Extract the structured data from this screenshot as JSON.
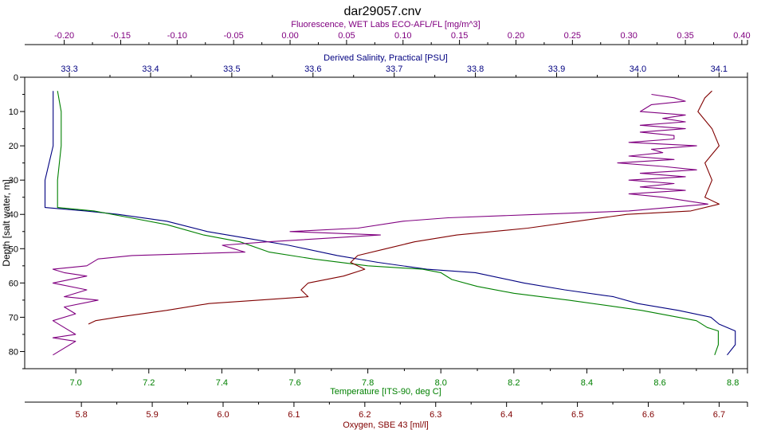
{
  "chart_data": {
    "type": "line",
    "title": "dar29057.cnv",
    "grid": false,
    "legend": "none",
    "y_axis": {
      "label": "Depth [salt water, m]",
      "range": [
        0,
        85
      ],
      "inverted": true,
      "ticks": [
        0,
        10,
        20,
        30,
        40,
        50,
        60,
        70,
        80
      ]
    },
    "x_axes": [
      {
        "id": "fluorescence",
        "position": "top-outer",
        "label": "Fluorescence, WET Labs ECO-AFL/FL [mg/m^3]",
        "color": "#800080",
        "range": [
          -0.235,
          0.405
        ],
        "ticks": [
          -0.2,
          -0.15,
          -0.1,
          -0.05,
          0.0,
          0.05,
          0.1,
          0.15,
          0.2,
          0.25,
          0.3,
          0.35,
          0.4
        ],
        "tick_labels": [
          "-0.20",
          "-0.15",
          "-0.10",
          "-0.05",
          "0.00",
          "0.05",
          "0.10",
          "0.15",
          "0.20",
          "0.25",
          "0.30",
          "0.35",
          "0.40"
        ]
      },
      {
        "id": "salinity",
        "position": "top-inner",
        "label": "Derived Salinity, Practical [PSU]",
        "color": "#000080",
        "range": [
          33.245,
          34.135
        ],
        "ticks": [
          33.3,
          33.4,
          33.5,
          33.6,
          33.7,
          33.8,
          33.9,
          34.0,
          34.1
        ],
        "tick_labels": [
          "33.3",
          "33.4",
          "33.5",
          "33.6",
          "33.7",
          "33.8",
          "33.9",
          "34.0",
          "34.1"
        ]
      },
      {
        "id": "temperature",
        "position": "bottom-inner",
        "label": "Temperature [ITS-90, deg C]",
        "color": "#008000",
        "range": [
          6.86,
          8.84
        ],
        "ticks": [
          7.0,
          7.2,
          7.4,
          7.6,
          7.8,
          8.0,
          8.2,
          8.4,
          8.6,
          8.8
        ],
        "tick_labels": [
          "7.0",
          "7.2",
          "7.4",
          "7.6",
          "7.8",
          "8.0",
          "8.2",
          "8.4",
          "8.6",
          "8.8"
        ]
      },
      {
        "id": "oxygen",
        "position": "bottom-outer",
        "label": "Oxygen, SBE 43 [ml/l]",
        "color": "#800000",
        "range": [
          5.72,
          6.74
        ],
        "ticks": [
          5.8,
          5.9,
          6.0,
          6.1,
          6.2,
          6.3,
          6.4,
          6.5,
          6.6,
          6.7
        ],
        "tick_labels": [
          "5.8",
          "5.9",
          "6.0",
          "6.1",
          "6.2",
          "6.3",
          "6.4",
          "6.5",
          "6.6",
          "6.7"
        ]
      }
    ],
    "series": [
      {
        "axis": "salinity",
        "color": "#000080",
        "points": [
          [
            33.28,
            4
          ],
          [
            33.28,
            10
          ],
          [
            33.28,
            20
          ],
          [
            33.27,
            30
          ],
          [
            33.27,
            38
          ],
          [
            33.32,
            39
          ],
          [
            33.36,
            40
          ],
          [
            33.42,
            42
          ],
          [
            33.47,
            45
          ],
          [
            33.52,
            47
          ],
          [
            33.57,
            49
          ],
          [
            33.63,
            52
          ],
          [
            33.68,
            54
          ],
          [
            33.74,
            56
          ],
          [
            33.8,
            57
          ],
          [
            33.86,
            60
          ],
          [
            33.91,
            62
          ],
          [
            33.97,
            64
          ],
          [
            34.0,
            66
          ],
          [
            34.05,
            68
          ],
          [
            34.09,
            70
          ],
          [
            34.1,
            72
          ],
          [
            34.12,
            74
          ],
          [
            34.12,
            78
          ],
          [
            34.11,
            81
          ]
        ]
      },
      {
        "axis": "temperature",
        "color": "#008000",
        "points": [
          [
            6.95,
            4
          ],
          [
            6.96,
            10
          ],
          [
            6.96,
            20
          ],
          [
            6.95,
            30
          ],
          [
            6.95,
            38
          ],
          [
            7.05,
            39
          ],
          [
            7.15,
            41
          ],
          [
            7.25,
            43
          ],
          [
            7.35,
            46
          ],
          [
            7.45,
            48
          ],
          [
            7.53,
            51
          ],
          [
            7.65,
            53
          ],
          [
            7.8,
            55
          ],
          [
            7.95,
            56
          ],
          [
            8.0,
            57
          ],
          [
            8.03,
            59
          ],
          [
            8.1,
            61
          ],
          [
            8.2,
            63
          ],
          [
            8.35,
            65
          ],
          [
            8.55,
            68
          ],
          [
            8.7,
            71
          ],
          [
            8.73,
            73
          ],
          [
            8.76,
            74
          ],
          [
            8.76,
            78
          ],
          [
            8.75,
            81
          ]
        ]
      },
      {
        "axis": "fluorescence",
        "color": "#800080",
        "points": [
          [
            0.32,
            5
          ],
          [
            0.34,
            6
          ],
          [
            0.35,
            7
          ],
          [
            0.32,
            8
          ],
          [
            0.31,
            10
          ],
          [
            0.35,
            11
          ],
          [
            0.33,
            12
          ],
          [
            0.35,
            13
          ],
          [
            0.31,
            14
          ],
          [
            0.35,
            15
          ],
          [
            0.31,
            16
          ],
          [
            0.34,
            17
          ],
          [
            0.34,
            18
          ],
          [
            0.3,
            19
          ],
          [
            0.36,
            20
          ],
          [
            0.32,
            21
          ],
          [
            0.33,
            22
          ],
          [
            0.3,
            23
          ],
          [
            0.34,
            24
          ],
          [
            0.29,
            25
          ],
          [
            0.33,
            26
          ],
          [
            0.36,
            27
          ],
          [
            0.31,
            28
          ],
          [
            0.35,
            29
          ],
          [
            0.3,
            30
          ],
          [
            0.34,
            31
          ],
          [
            0.31,
            32
          ],
          [
            0.35,
            33
          ],
          [
            0.3,
            34
          ],
          [
            0.33,
            35
          ],
          [
            0.37,
            37
          ],
          [
            0.3,
            39
          ],
          [
            0.22,
            40
          ],
          [
            0.14,
            41
          ],
          [
            0.1,
            42
          ],
          [
            0.06,
            44
          ],
          [
            0.0,
            45
          ],
          [
            0.08,
            46
          ],
          [
            -0.02,
            48
          ],
          [
            -0.06,
            49
          ],
          [
            -0.05,
            50
          ],
          [
            -0.04,
            51
          ],
          [
            -0.14,
            52
          ],
          [
            -0.17,
            53
          ],
          [
            -0.18,
            55
          ],
          [
            -0.21,
            56
          ],
          [
            -0.2,
            57
          ],
          [
            -0.18,
            58
          ],
          [
            -0.21,
            60
          ],
          [
            -0.18,
            62
          ],
          [
            -0.2,
            64
          ],
          [
            -0.17,
            65
          ],
          [
            -0.2,
            67
          ],
          [
            -0.19,
            69
          ],
          [
            -0.21,
            71
          ],
          [
            -0.2,
            73
          ],
          [
            -0.19,
            75
          ],
          [
            -0.21,
            76
          ],
          [
            -0.19,
            77
          ],
          [
            -0.2,
            79
          ],
          [
            -0.21,
            81
          ]
        ]
      },
      {
        "axis": "oxygen",
        "color": "#800000",
        "points": [
          [
            6.69,
            4
          ],
          [
            6.68,
            6
          ],
          [
            6.67,
            10
          ],
          [
            6.69,
            15
          ],
          [
            6.7,
            20
          ],
          [
            6.68,
            25
          ],
          [
            6.69,
            30
          ],
          [
            6.68,
            35
          ],
          [
            6.7,
            37
          ],
          [
            6.66,
            39
          ],
          [
            6.57,
            40
          ],
          [
            6.5,
            42
          ],
          [
            6.43,
            44
          ],
          [
            6.33,
            46
          ],
          [
            6.27,
            48
          ],
          [
            6.23,
            50
          ],
          [
            6.19,
            52
          ],
          [
            6.18,
            54
          ],
          [
            6.2,
            56
          ],
          [
            6.17,
            58
          ],
          [
            6.12,
            60
          ],
          [
            6.11,
            62
          ],
          [
            6.12,
            64
          ],
          [
            6.05,
            65
          ],
          [
            5.98,
            66
          ],
          [
            5.92,
            68
          ],
          [
            5.85,
            70
          ],
          [
            5.82,
            71
          ],
          [
            5.81,
            72
          ]
        ]
      }
    ]
  }
}
